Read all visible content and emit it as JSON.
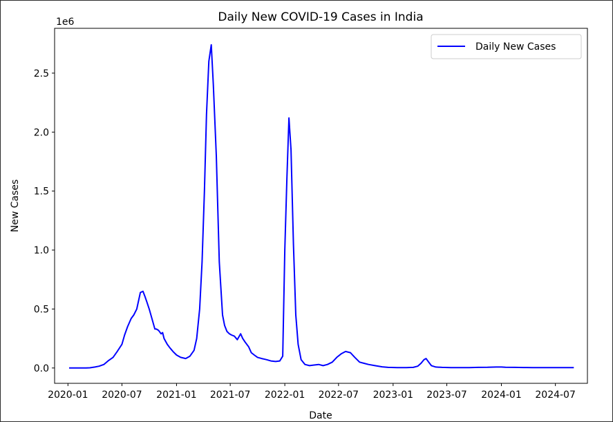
{
  "chart_data": {
    "type": "line",
    "title": "Daily New COVID-19 Cases in India",
    "xlabel": "Date",
    "ylabel": "New Cases",
    "y_offset_label": "1e6",
    "y_scale_factor": 1000000,
    "xlim": [
      "2019-11-17",
      "2024-10-17"
    ],
    "ylim": [
      -130000,
      2880000
    ],
    "x_ticks": [
      "2020-01",
      "2020-07",
      "2021-01",
      "2021-07",
      "2022-01",
      "2022-07",
      "2023-01",
      "2023-07",
      "2024-01",
      "2024-07"
    ],
    "y_ticks": [
      0,
      500000,
      1000000,
      1500000,
      2000000,
      2500000
    ],
    "y_tick_labels": [
      "0.0",
      "0.5",
      "1.0",
      "1.5",
      "2.0",
      "2.5"
    ],
    "grid": false,
    "legend_position": "top-right",
    "series": [
      {
        "name": "Daily New Cases",
        "color": "#0000ff",
        "x": [
          "2020-01-05",
          "2020-02-01",
          "2020-03-01",
          "2020-03-15",
          "2020-04-01",
          "2020-04-15",
          "2020-05-01",
          "2020-05-15",
          "2020-06-01",
          "2020-06-15",
          "2020-07-01",
          "2020-07-10",
          "2020-07-20",
          "2020-08-01",
          "2020-08-10",
          "2020-08-20",
          "2020-09-01",
          "2020-09-10",
          "2020-09-16",
          "2020-09-23",
          "2020-10-01",
          "2020-10-10",
          "2020-10-20",
          "2020-10-25",
          "2020-11-01",
          "2020-11-10",
          "2020-11-15",
          "2020-11-20",
          "2020-12-01",
          "2020-12-10",
          "2020-12-20",
          "2021-01-01",
          "2021-01-15",
          "2021-02-01",
          "2021-02-15",
          "2021-03-01",
          "2021-03-10",
          "2021-03-20",
          "2021-03-28",
          "2021-04-05",
          "2021-04-12",
          "2021-04-20",
          "2021-04-28",
          "2021-05-05",
          "2021-05-15",
          "2021-05-25",
          "2021-06-05",
          "2021-06-12",
          "2021-06-20",
          "2021-06-28",
          "2021-07-05",
          "2021-07-15",
          "2021-07-25",
          "2021-08-05",
          "2021-08-12",
          "2021-08-20",
          "2021-09-01",
          "2021-09-10",
          "2021-09-20",
          "2021-10-01",
          "2021-10-15",
          "2021-11-01",
          "2021-11-15",
          "2021-12-01",
          "2021-12-15",
          "2021-12-25",
          "2022-01-01",
          "2022-01-08",
          "2022-01-15",
          "2022-01-22",
          "2022-01-30",
          "2022-02-07",
          "2022-02-15",
          "2022-02-25",
          "2022-03-10",
          "2022-03-25",
          "2022-04-10",
          "2022-04-25",
          "2022-05-10",
          "2022-05-25",
          "2022-06-10",
          "2022-06-25",
          "2022-07-10",
          "2022-07-25",
          "2022-08-10",
          "2022-08-25",
          "2022-09-10",
          "2022-09-25",
          "2022-10-10",
          "2022-11-01",
          "2022-11-25",
          "2022-12-15",
          "2023-01-15",
          "2023-02-15",
          "2023-03-10",
          "2023-03-25",
          "2023-04-05",
          "2023-04-15",
          "2023-04-22",
          "2023-05-01",
          "2023-05-10",
          "2023-05-25",
          "2023-06-15",
          "2023-07-15",
          "2023-08-15",
          "2023-09-15",
          "2023-10-15",
          "2023-11-15",
          "2023-12-15",
          "2024-01-01",
          "2024-01-15",
          "2024-02-15",
          "2024-03-15",
          "2024-04-15",
          "2024-05-15",
          "2024-06-15",
          "2024-07-15",
          "2024-08-15",
          "2024-09-01"
        ],
        "values": [
          0,
          0,
          0,
          2000,
          8000,
          15000,
          30000,
          60000,
          90000,
          140000,
          200000,
          280000,
          350000,
          420000,
          450000,
          500000,
          640000,
          650000,
          610000,
          560000,
          500000,
          420000,
          330000,
          330000,
          320000,
          290000,
          300000,
          250000,
          200000,
          170000,
          140000,
          110000,
          90000,
          80000,
          100000,
          150000,
          250000,
          500000,
          900000,
          1500000,
          2150000,
          2600000,
          2740000,
          2400000,
          1800000,
          900000,
          450000,
          360000,
          310000,
          290000,
          280000,
          270000,
          240000,
          290000,
          250000,
          220000,
          180000,
          130000,
          110000,
          90000,
          80000,
          70000,
          60000,
          55000,
          60000,
          100000,
          1000000,
          1600000,
          2120000,
          1850000,
          1050000,
          450000,
          200000,
          70000,
          30000,
          20000,
          25000,
          30000,
          20000,
          30000,
          50000,
          90000,
          120000,
          140000,
          130000,
          90000,
          50000,
          40000,
          30000,
          20000,
          10000,
          5000,
          3000,
          3000,
          5000,
          15000,
          40000,
          70000,
          80000,
          50000,
          20000,
          8000,
          5000,
          3000,
          3000,
          3000,
          5000,
          6000,
          8000,
          8000,
          6000,
          5000,
          4000,
          3000,
          3000,
          3000,
          3000,
          3000,
          3000
        ]
      }
    ]
  }
}
